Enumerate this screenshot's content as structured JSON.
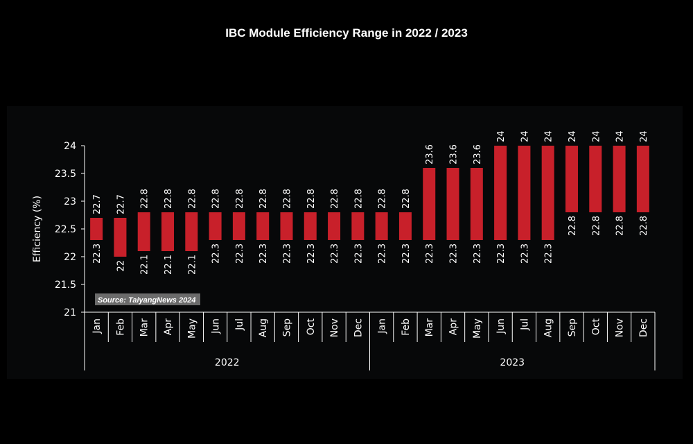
{
  "chart_data": {
    "type": "bar",
    "title": "IBC Module Efficiency Range in 2022 / 2023",
    "ylabel": "Efficiency (%)",
    "ylim": [
      21,
      24
    ],
    "yticks": [
      "21",
      "21.5",
      "22",
      "22.5",
      "23",
      "23.5",
      "24"
    ],
    "groups": [
      "2022",
      "2023"
    ],
    "categories": [
      "Jan",
      "Feb",
      "Mar",
      "Apr",
      "May",
      "Jun",
      "Jul",
      "Aug",
      "Sep",
      "Oct",
      "Nov",
      "Dec",
      "Jan",
      "Feb",
      "Mar",
      "Apr",
      "May",
      "Jun",
      "Jul",
      "Aug",
      "Sep",
      "Oct",
      "Nov",
      "Dec"
    ],
    "series": [
      {
        "values_low": [
          22.3,
          22,
          22.1,
          22.1,
          22.1,
          22.3,
          22.3,
          22.3,
          22.3,
          22.3,
          22.3,
          22.3,
          22.3,
          22.3,
          22.3,
          22.3,
          22.3,
          22.3,
          22.3,
          22.3,
          22.8,
          22.8,
          22.8,
          22.8
        ],
        "values_high": [
          22.7,
          22.7,
          22.8,
          22.8,
          22.8,
          22.8,
          22.8,
          22.8,
          22.8,
          22.8,
          22.8,
          22.8,
          22.8,
          22.8,
          23.6,
          23.6,
          23.6,
          24,
          24,
          24,
          24,
          24,
          24,
          24
        ],
        "labels_low": [
          "22.3",
          "22",
          "22.1",
          "22.1",
          "22.1",
          "22.3",
          "22.3",
          "22.3",
          "22.3",
          "22.3",
          "22.3",
          "22.3",
          "22.3",
          "22.3",
          "22.3",
          "22.3",
          "22.3",
          "22.3",
          "22.3",
          "22.3",
          "22.8",
          "22.8",
          "22.8",
          "22.8"
        ],
        "labels_high": [
          "22.7",
          "22.7",
          "22.8",
          "22.8",
          "22.8",
          "22.8",
          "22.8",
          "22.8",
          "22.8",
          "22.8",
          "22.8",
          "22.8",
          "22.8",
          "22.8",
          "23.6",
          "23.6",
          "23.6",
          "24",
          "24",
          "24",
          "24",
          "24",
          "24",
          "24"
        ]
      }
    ],
    "bar_color": "#c8202a",
    "annotation": "Source: TaiyangNews 2024"
  }
}
